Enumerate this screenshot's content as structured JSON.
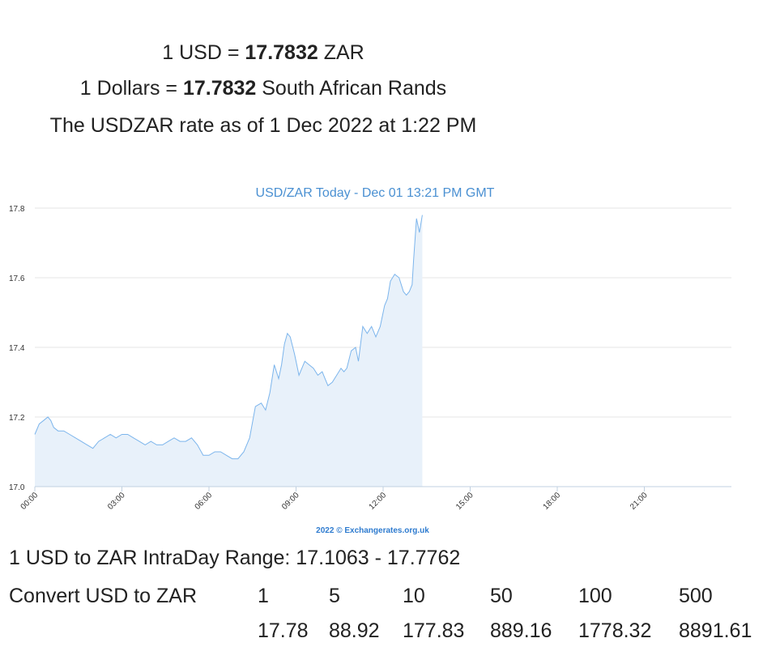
{
  "summary": {
    "line1_prefix": "1 USD = ",
    "line1_rate": "17.7832",
    "line1_suffix": " ZAR",
    "line2_prefix": "1 Dollars = ",
    "line2_rate": "17.7832",
    "line2_suffix": " South African Rands",
    "line3": "The USDZAR rate as of 1 Dec 2022 at 1:22 PM"
  },
  "colors": {
    "line": "#7cb5ec",
    "area": "#e8f1fa",
    "title": "#4a90d2",
    "credit": "#2e7bcf",
    "grid": "#e6e6e6",
    "axis_text": "#333333"
  },
  "chart_data": {
    "type": "area",
    "title": "USD/ZAR Today - Dec 01 13:21 PM GMT",
    "credit": "2022 © Exchangerates.org.uk",
    "xlabel": "",
    "ylabel": "",
    "ylim": [
      17.0,
      17.8
    ],
    "y_ticks": [
      "17.8",
      "17.6",
      "17.4",
      "17.2",
      "17.0"
    ],
    "y_tick_values": [
      17.8,
      17.6,
      17.4,
      17.2,
      17.0
    ],
    "xlim": [
      0,
      24
    ],
    "x_ticks": [
      "00:00",
      "03:00",
      "06:00",
      "09:00",
      "12:00",
      "15:00",
      "18:00",
      "21:00"
    ],
    "x_tick_values": [
      0,
      3,
      6,
      9,
      12,
      15,
      18,
      21
    ],
    "grid": true,
    "legend": "none",
    "series": [
      {
        "x": [
          0,
          0.15,
          0.3,
          0.45,
          0.55,
          0.65,
          0.8,
          1.0,
          1.2,
          1.4,
          1.6,
          1.8,
          2.0,
          2.2,
          2.4,
          2.6,
          2.8,
          3.0,
          3.2,
          3.4,
          3.6,
          3.8,
          4.0,
          4.2,
          4.4,
          4.6,
          4.8,
          5.0,
          5.2,
          5.4,
          5.6,
          5.8,
          6.0,
          6.2,
          6.4,
          6.6,
          6.8,
          7.0,
          7.2,
          7.4,
          7.6,
          7.8,
          7.95,
          8.1,
          8.25,
          8.4,
          8.5,
          8.6,
          8.7,
          8.8,
          8.95,
          9.1,
          9.2,
          9.3,
          9.45,
          9.6,
          9.75,
          9.9,
          10.0,
          10.1,
          10.25,
          10.4,
          10.55,
          10.65,
          10.75,
          10.9,
          11.05,
          11.15,
          11.3,
          11.45,
          11.6,
          11.75,
          11.9,
          12.05,
          12.15,
          12.25,
          12.4,
          12.55,
          12.7,
          12.8,
          12.9,
          13.0,
          13.05,
          13.15,
          13.25,
          13.35
        ],
        "values": [
          17.15,
          17.18,
          17.19,
          17.2,
          17.19,
          17.17,
          17.16,
          17.16,
          17.15,
          17.14,
          17.13,
          17.12,
          17.11,
          17.13,
          17.14,
          17.15,
          17.14,
          17.15,
          17.15,
          17.14,
          17.13,
          17.12,
          17.13,
          17.12,
          17.12,
          17.13,
          17.14,
          17.13,
          17.13,
          17.14,
          17.12,
          17.09,
          17.09,
          17.1,
          17.1,
          17.09,
          17.08,
          17.08,
          17.1,
          17.14,
          17.23,
          17.24,
          17.22,
          17.27,
          17.35,
          17.31,
          17.35,
          17.41,
          17.44,
          17.43,
          17.38,
          17.32,
          17.34,
          17.36,
          17.35,
          17.34,
          17.32,
          17.33,
          17.31,
          17.29,
          17.3,
          17.32,
          17.34,
          17.33,
          17.34,
          17.39,
          17.4,
          17.36,
          17.46,
          17.44,
          17.46,
          17.43,
          17.46,
          17.52,
          17.54,
          17.59,
          17.61,
          17.6,
          17.56,
          17.55,
          17.56,
          17.58,
          17.65,
          17.77,
          17.73,
          17.78
        ]
      }
    ]
  },
  "range": {
    "text": "1 USD to ZAR IntraDay Range: 17.1063 - 17.7762"
  },
  "convert": {
    "label": "Convert USD to ZAR",
    "amounts": [
      "1",
      "5",
      "10",
      "50",
      "100",
      "500"
    ],
    "results": [
      "17.78",
      "88.92",
      "177.83",
      "889.16",
      "1778.32",
      "8891.61"
    ]
  }
}
